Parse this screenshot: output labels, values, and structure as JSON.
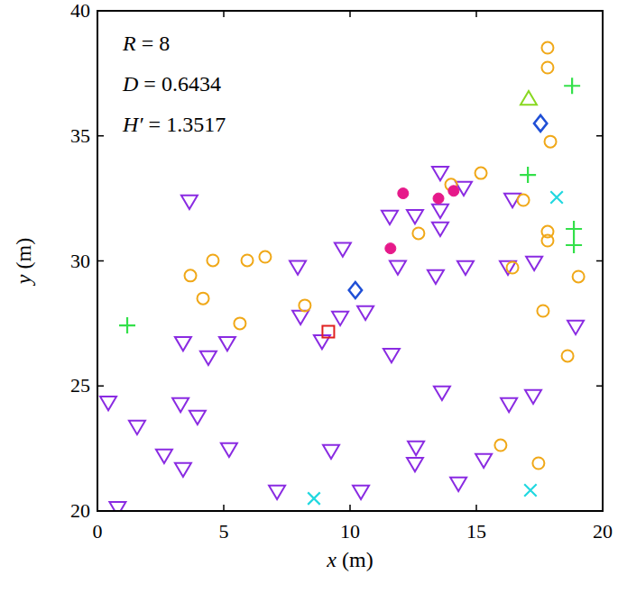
{
  "chart_data": {
    "type": "scatter",
    "xlabel": "x (m)",
    "ylabel": "y (m)",
    "annotations": [
      "R = 8",
      "D = 0.6434",
      "H′ = 1.3517"
    ],
    "xlim": [
      0,
      20
    ],
    "ylim": [
      20,
      40
    ],
    "xticks": [
      0,
      5,
      10,
      15,
      20
    ],
    "yticks": [
      20,
      25,
      30,
      35,
      40
    ],
    "series": [
      {
        "color": "#8a2be2",
        "marker": "triangle-down",
        "x": [
          3.64,
          13.57,
          14.5,
          11.57,
          12.57,
          13.57,
          13.57,
          16.43,
          9.71,
          7.93,
          11.89,
          13.39,
          14.57,
          16.25,
          17.29,
          18.93,
          9.61,
          8.04,
          10.61,
          8.89,
          3.39,
          5.14,
          4.39,
          11.64,
          0.43,
          1.57,
          3.29,
          3.96,
          2.64,
          3.39,
          5.21,
          7.11,
          9.25,
          10.43,
          12.57,
          12.61,
          13.64,
          14.29,
          15.29,
          16.29,
          17.25,
          0.8
        ],
        "y": [
          32.36,
          33.51,
          32.9,
          31.75,
          31.78,
          32.0,
          31.28,
          32.43,
          30.46,
          29.74,
          29.74,
          29.37,
          29.73,
          29.73,
          29.91,
          27.35,
          27.71,
          27.75,
          27.93,
          26.77,
          26.7,
          26.7,
          26.13,
          26.23,
          24.32,
          23.35,
          24.25,
          23.75,
          22.2,
          21.66,
          22.45,
          20.76,
          22.38,
          20.76,
          21.87,
          22.52,
          24.72,
          21.08,
          22.02,
          24.25,
          24.58,
          20.1
        ]
      },
      {
        "color": "#f0a818",
        "marker": "circle",
        "x": [
          17.82,
          17.82,
          17.93,
          15.18,
          14.0,
          16.86,
          17.82,
          17.82,
          19.04,
          16.43,
          17.64,
          18.61,
          12.71,
          8.21,
          3.68,
          4.57,
          4.18,
          5.93,
          6.64,
          5.64,
          15.96,
          17.46
        ],
        "y": [
          38.52,
          37.73,
          34.77,
          33.51,
          33.05,
          32.43,
          31.17,
          30.81,
          29.37,
          29.73,
          28.0,
          26.2,
          31.1,
          28.22,
          29.41,
          30.02,
          28.5,
          30.02,
          30.16,
          27.5,
          22.63,
          21.91
        ]
      },
      {
        "color": "#33e04a",
        "marker": "plus",
        "x": [
          1.18,
          17.04,
          18.79,
          18.86,
          18.86
        ],
        "y": [
          27.42,
          33.44,
          37.0,
          31.28,
          30.63
        ]
      },
      {
        "color": "#e6198a",
        "marker": "filled-circle",
        "x": [
          12.1,
          13.5,
          14.1,
          11.6
        ],
        "y": [
          32.7,
          32.5,
          32.8,
          30.5
        ]
      },
      {
        "color": "#22d8e0",
        "marker": "cross",
        "x": [
          18.18,
          8.57,
          17.14
        ],
        "y": [
          32.54,
          20.5,
          20.83
        ]
      },
      {
        "color": "#1f4fd6",
        "marker": "diamond",
        "x": [
          17.54,
          10.21
        ],
        "y": [
          35.5,
          28.83
        ]
      },
      {
        "color": "#88d820",
        "marker": "triangle-up",
        "x": [
          17.07
        ],
        "y": [
          36.5
        ]
      },
      {
        "color": "#e02020",
        "marker": "square",
        "x": [
          9.14
        ],
        "y": [
          27.17
        ]
      }
    ]
  }
}
